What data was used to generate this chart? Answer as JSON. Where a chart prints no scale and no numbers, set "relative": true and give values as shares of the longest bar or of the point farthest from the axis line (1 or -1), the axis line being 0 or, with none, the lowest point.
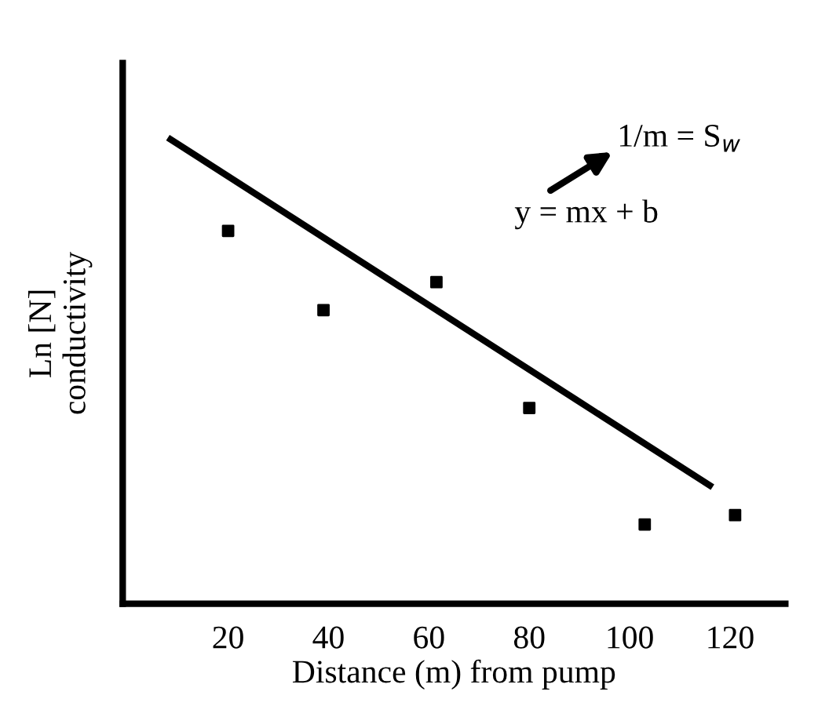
{
  "chart_data": {
    "type": "scatter",
    "relative": true,
    "xlabel": "Distance (m) from pump",
    "ylabel": "Ln [N]\nconductivity",
    "xlim": [
      -1,
      131
    ],
    "xticks": [
      20,
      40,
      60,
      80,
      100,
      120
    ],
    "grid": false,
    "marker": "square",
    "series": [
      {
        "color": "#000000",
        "x": [
          20,
          39,
          61.5,
          80,
          103,
          121
        ],
        "values": [
          0.8,
          0.63,
          0.69,
          0.42,
          0.17,
          0.19
        ]
      },
      {
        "type": "line",
        "color": "#000000",
        "marker": "none",
        "x": [
          8,
          116.5
        ],
        "values": [
          1,
          0.25
        ]
      }
    ],
    "annotations": [
      "y = mx + b",
      "1/m = S$_{w}$"
    ]
  }
}
